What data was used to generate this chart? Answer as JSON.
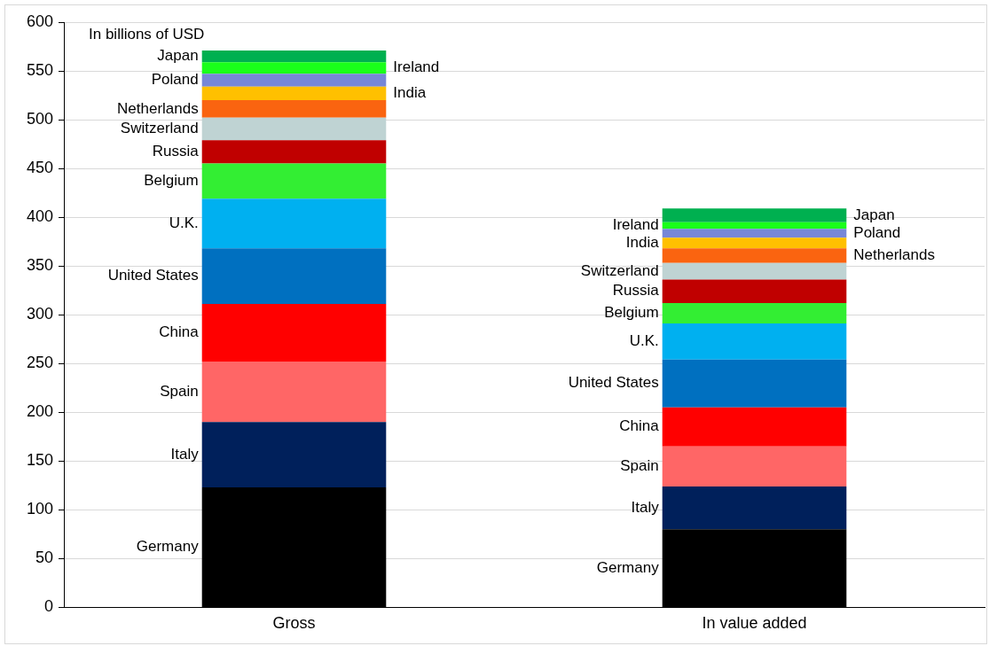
{
  "chart_data": {
    "type": "bar",
    "stacked": true,
    "categories": [
      "Gross",
      "In value added"
    ],
    "series": [
      {
        "name": "Germany",
        "color": "#000000",
        "values": [
          123,
          80
        ]
      },
      {
        "name": "Italy",
        "color": "#00205b",
        "values": [
          67,
          44
        ]
      },
      {
        "name": "Spain",
        "color": "#ff6666",
        "values": [
          62,
          41
        ]
      },
      {
        "name": "China",
        "color": "#ff0000",
        "values": [
          59,
          40
        ]
      },
      {
        "name": "United States",
        "color": "#0070c0",
        "values": [
          57,
          49
        ]
      },
      {
        "name": "U.K.",
        "color": "#00b0f0",
        "values": [
          51,
          37
        ]
      },
      {
        "name": "Belgium",
        "color": "#33ee33",
        "values": [
          36,
          21
        ]
      },
      {
        "name": "Russia",
        "color": "#c00000",
        "values": [
          24,
          24
        ]
      },
      {
        "name": "Switzerland",
        "color": "#bfd3d3",
        "values": [
          23,
          17
        ]
      },
      {
        "name": "Netherlands",
        "color": "#fa6410",
        "values": [
          18,
          15
        ]
      },
      {
        "name": "India",
        "color": "#ffc000",
        "values": [
          14,
          11
        ]
      },
      {
        "name": "Poland",
        "color": "#7787d7",
        "values": [
          13,
          9
        ]
      },
      {
        "name": "Ireland",
        "color": "#1aff1a",
        "values": [
          12,
          7
        ]
      },
      {
        "name": "Japan",
        "color": "#00b050",
        "values": [
          12,
          14
        ]
      }
    ],
    "ylim": [
      0,
      600
    ],
    "yticks": [
      0,
      50,
      100,
      150,
      200,
      250,
      300,
      350,
      400,
      450,
      500,
      550,
      600
    ],
    "grid": "y",
    "legend": false,
    "annotations": [
      "In billions of USD"
    ]
  }
}
